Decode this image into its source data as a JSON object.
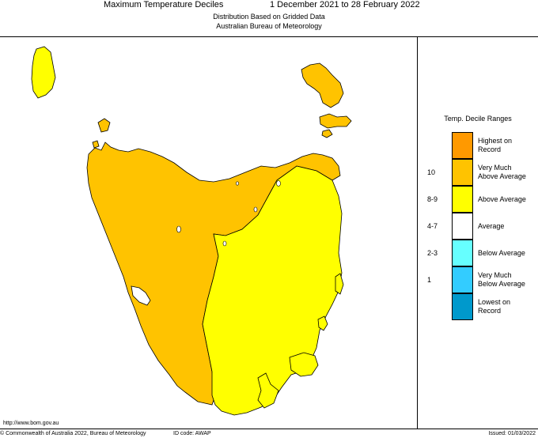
{
  "header": {
    "title": "Maximum Temperature Deciles",
    "period": "1 December 2021 to 28 February 2022",
    "subtitle": "Distribution Based on Gridded Data",
    "agency": "Australian Bureau of Meteorology"
  },
  "map": {
    "region": "Tasmania",
    "colors": {
      "very_much_above": "#ffc300",
      "above": "#ffff00",
      "outline": "#000000"
    }
  },
  "legend": {
    "title": "Temp. Decile Ranges",
    "items": [
      {
        "code": "",
        "label_1": "Highest on",
        "label_2": "Record",
        "color": "#ff9900"
      },
      {
        "code": "10",
        "label_1": "Very Much",
        "label_2": "Above Average",
        "color": "#ffc300"
      },
      {
        "code": "8-9",
        "label_1": "Above Average",
        "label_2": "",
        "color": "#ffff00"
      },
      {
        "code": "4-7",
        "label_1": "Average",
        "label_2": "",
        "color": "#ffffff"
      },
      {
        "code": "2-3",
        "label_1": "Below Average",
        "label_2": "",
        "color": "#66ffff"
      },
      {
        "code": "1",
        "label_1": "Very Much",
        "label_2": "Below Average",
        "color": "#33ccff"
      },
      {
        "code": "",
        "label_1": "Lowest on",
        "label_2": "Record",
        "color": "#0099cc"
      }
    ]
  },
  "footer": {
    "url": "http://www.bom.gov.au",
    "copyright": "© Commonwealth of Australia 2022, Bureau of Meteorology",
    "id_code": "ID code: AWAP",
    "issued": "Issued: 01/03/2022"
  }
}
